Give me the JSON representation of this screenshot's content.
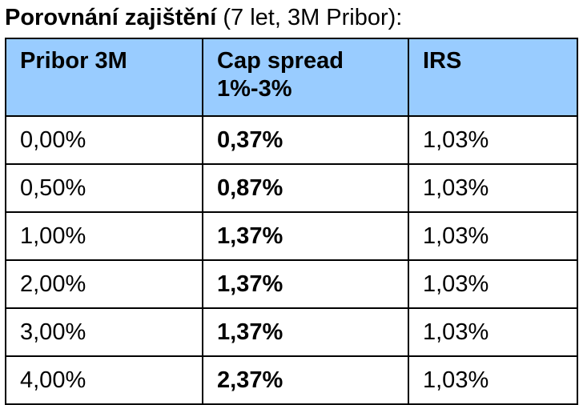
{
  "title": {
    "bold": "Porovnání zajištění",
    "normal": " (7 let, 3M Pribor):"
  },
  "table": {
    "headers": [
      "Pribor 3M",
      "Cap spread 1%-3%",
      "IRS"
    ],
    "rows": [
      [
        "0,00%",
        "0,37%",
        "1,03%"
      ],
      [
        "0,50%",
        "0,87%",
        "1,03%"
      ],
      [
        "1,00%",
        "1,37%",
        "1,03%"
      ],
      [
        "2,00%",
        "1,37%",
        "1,03%"
      ],
      [
        "3,00%",
        "1,37%",
        "1,03%"
      ],
      [
        "4,00%",
        "2,37%",
        "1,03%"
      ]
    ]
  },
  "colors": {
    "header_bg": "#99ccff",
    "border": "#000000"
  }
}
